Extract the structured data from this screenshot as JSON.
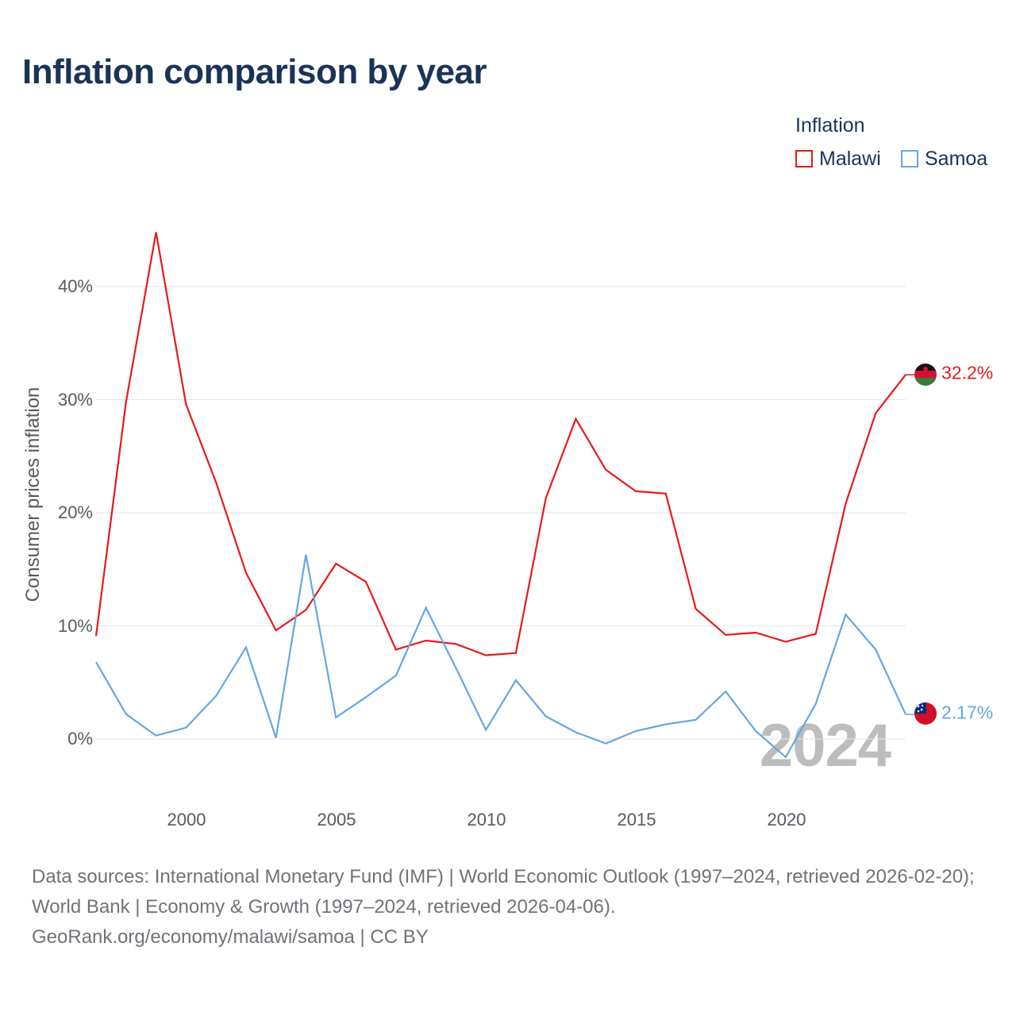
{
  "title": "Inflation comparison by year",
  "legend": {
    "title": "Inflation",
    "items": [
      {
        "name": "Malawi",
        "color": "#e8191b"
      },
      {
        "name": "Samoa",
        "color": "#64a7e3"
      }
    ]
  },
  "watermark_year": "2024",
  "end_labels": {
    "malawi": "32.2%",
    "samoa": "2.17%"
  },
  "source": {
    "text": "Data sources: International Monetary Fund (IMF) | World Economic Outlook (1997–2024, retrieved 2026-02-20); World Bank | Economy & Growth (1997–2024, retrieved 2026-04-06).",
    "attribution": "GeoRank.org/economy/malawi/samoa | CC BY"
  },
  "chart_data": {
    "type": "line",
    "title": "Inflation comparison by year",
    "xlabel": "",
    "ylabel": "Consumer prices inflation",
    "xlim": [
      1997,
      2024
    ],
    "ylim": [
      -5,
      48
    ],
    "x_ticks": [
      "2000",
      "2005",
      "2010",
      "2015",
      "2020"
    ],
    "y_ticks": [
      "0%",
      "10%",
      "20%",
      "30%",
      "40%"
    ],
    "x": [
      1997,
      1998,
      1999,
      2000,
      2001,
      2002,
      2003,
      2004,
      2005,
      2006,
      2007,
      2008,
      2009,
      2010,
      2011,
      2012,
      2013,
      2014,
      2015,
      2016,
      2017,
      2018,
      2019,
      2020,
      2021,
      2022,
      2023,
      2024
    ],
    "series": [
      {
        "name": "Malawi",
        "color": "#e8191b",
        "values": [
          9.1,
          29.8,
          44.8,
          29.6,
          22.7,
          14.7,
          9.6,
          11.4,
          15.5,
          13.9,
          7.9,
          8.7,
          8.4,
          7.4,
          7.6,
          21.3,
          28.3,
          23.8,
          21.9,
          21.7,
          11.5,
          9.2,
          9.4,
          8.6,
          9.3,
          20.8,
          28.8,
          32.2
        ]
      },
      {
        "name": "Samoa",
        "color": "#64a7e3",
        "values": [
          6.8,
          2.2,
          0.3,
          1.0,
          3.8,
          8.1,
          0.1,
          16.3,
          1.9,
          3.7,
          5.6,
          11.6,
          6.3,
          0.8,
          5.2,
          2.0,
          0.6,
          -0.4,
          0.7,
          1.3,
          1.7,
          4.2,
          0.7,
          -1.6,
          3.1,
          11.0,
          7.9,
          2.17
        ]
      }
    ]
  }
}
